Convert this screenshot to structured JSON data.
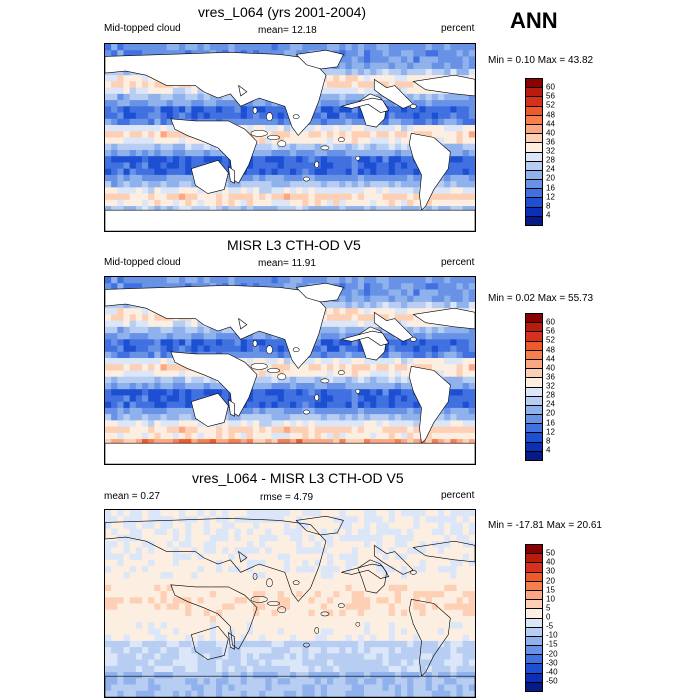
{
  "season": "ANN",
  "panels": [
    {
      "title": "vres_L064 (yrs 2001-2004)",
      "left_label": "Mid-topped cloud",
      "mid_label": "mean=  12.18",
      "right_label": "percent",
      "minmax": "Min =   0.10 Max =  43.82",
      "map_style": "model"
    },
    {
      "title": "MISR L3 CTH-OD V5",
      "left_label": "Mid-topped cloud",
      "mid_label": "mean=  11.91",
      "right_label": "percent",
      "minmax": "Min =   0.02 Max =  55.73",
      "map_style": "obs"
    },
    {
      "title": "vres_L064 - MISR L3 CTH-OD V5",
      "left_label": "mean =   0.27",
      "mid_label": "rmse =   4.79",
      "right_label": "percent",
      "minmax": "Min = -17.81 Max =  20.61",
      "map_style": "diff"
    }
  ],
  "colorbars": {
    "absolute": {
      "levels": [
        "60",
        "56",
        "52",
        "48",
        "44",
        "40",
        "36",
        "32",
        "28",
        "24",
        "20",
        "16",
        "12",
        "8",
        "4"
      ],
      "colors": [
        "#8b0000",
        "#b81c0c",
        "#d7301f",
        "#ef5a2c",
        "#f77e4d",
        "#fca783",
        "#fdd0b5",
        "#fdeee2",
        "#dbe6f8",
        "#b7cdf2",
        "#8fb1ec",
        "#6892e6",
        "#4171e0",
        "#1d4fd3",
        "#0b2fb5",
        "#061a8a"
      ]
    },
    "difference": {
      "levels": [
        "50",
        "40",
        "30",
        "20",
        "15",
        "10",
        "5",
        "0",
        "-5",
        "-10",
        "-15",
        "-20",
        "-30",
        "-40",
        "-50"
      ],
      "colors": [
        "#8b0000",
        "#b81c0c",
        "#d7301f",
        "#ef5a2c",
        "#f77e4d",
        "#fca783",
        "#fdd0b5",
        "#fdeee2",
        "#dbe6f8",
        "#b7cdf2",
        "#8fb1ec",
        "#6892e6",
        "#4171e0",
        "#1d4fd3",
        "#0b2fb5",
        "#061a8a"
      ]
    }
  }
}
